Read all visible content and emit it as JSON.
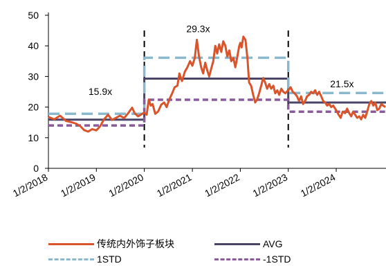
{
  "chart_data": {
    "type": "line",
    "title": "",
    "xlabel": "",
    "ylabel": "",
    "ylim": [
      0,
      50
    ],
    "yticks": [
      0,
      10,
      20,
      30,
      40,
      50
    ],
    "xlim": [
      "2018-01-02",
      "2025-01-15"
    ],
    "xtick_labels": [
      "1/2/2018",
      "1/2/2019",
      "1/2/2020",
      "1/2/2021",
      "1/2/2022",
      "1/2/2023",
      "1/2/2024"
    ],
    "xtick_dates": [
      "2018-01-02",
      "2019-01-02",
      "2020-01-02",
      "2021-01-02",
      "2022-01-02",
      "2023-01-02",
      "2024-01-02"
    ],
    "grid": false,
    "legend_position": "bottom",
    "series": [
      {
        "name": "传统内外饰子板块",
        "color": "#d9532b",
        "style": "solid",
        "points": [
          [
            "2018-01-02",
            16.8
          ],
          [
            "2018-02-15",
            16.0
          ],
          [
            "2018-04-01",
            17.2
          ],
          [
            "2018-05-15",
            15.5
          ],
          [
            "2018-07-01",
            15.0
          ],
          [
            "2018-08-01",
            14.6
          ],
          [
            "2018-09-01",
            13.8
          ],
          [
            "2018-10-01",
            12.5
          ],
          [
            "2018-11-01",
            12.0
          ],
          [
            "2018-12-01",
            12.8
          ],
          [
            "2019-01-02",
            12.4
          ],
          [
            "2019-02-01",
            13.8
          ],
          [
            "2019-03-01",
            16.0
          ],
          [
            "2019-04-01",
            17.5
          ],
          [
            "2019-05-01",
            15.8
          ],
          [
            "2019-06-01",
            16.5
          ],
          [
            "2019-07-01",
            17.2
          ],
          [
            "2019-08-01",
            16.4
          ],
          [
            "2019-09-01",
            18.0
          ],
          [
            "2019-10-01",
            19.8
          ],
          [
            "2019-10-20",
            18.0
          ],
          [
            "2019-11-15",
            17.0
          ],
          [
            "2019-12-10",
            17.6
          ],
          [
            "2020-01-02",
            18.2
          ],
          [
            "2020-01-20",
            17.5
          ],
          [
            "2020-02-05",
            22.5
          ],
          [
            "2020-02-20",
            20.5
          ],
          [
            "2020-03-05",
            21.0
          ],
          [
            "2020-03-25",
            17.8
          ],
          [
            "2020-04-15",
            18.5
          ],
          [
            "2020-05-10",
            20.8
          ],
          [
            "2020-06-01",
            21.5
          ],
          [
            "2020-06-20",
            20.0
          ],
          [
            "2020-07-10",
            22.5
          ],
          [
            "2020-08-01",
            24.5
          ],
          [
            "2020-08-20",
            26.5
          ],
          [
            "2020-09-10",
            27.0
          ],
          [
            "2020-09-25",
            31.0
          ],
          [
            "2020-10-15",
            28.5
          ],
          [
            "2020-11-05",
            31.5
          ],
          [
            "2020-11-25",
            33.0
          ],
          [
            "2020-12-15",
            35.0
          ],
          [
            "2021-01-02",
            33.5
          ],
          [
            "2021-01-20",
            36.0
          ],
          [
            "2021-02-05",
            42.0
          ],
          [
            "2021-02-20",
            37.0
          ],
          [
            "2021-03-10",
            33.0
          ],
          [
            "2021-03-25",
            31.0
          ],
          [
            "2021-04-10",
            34.5
          ],
          [
            "2021-04-25",
            32.0
          ],
          [
            "2021-05-10",
            30.0
          ],
          [
            "2021-05-25",
            32.5
          ],
          [
            "2021-06-10",
            35.0
          ],
          [
            "2021-06-25",
            40.0
          ],
          [
            "2021-07-10",
            37.5
          ],
          [
            "2021-07-25",
            40.5
          ],
          [
            "2021-08-10",
            38.0
          ],
          [
            "2021-08-25",
            41.5
          ],
          [
            "2021-09-10",
            40.0
          ],
          [
            "2021-09-25",
            36.5
          ],
          [
            "2021-10-10",
            38.5
          ],
          [
            "2021-10-25",
            35.0
          ],
          [
            "2021-11-10",
            36.0
          ],
          [
            "2021-11-25",
            33.0
          ],
          [
            "2021-12-10",
            36.5
          ],
          [
            "2021-12-25",
            40.0
          ],
          [
            "2022-01-02",
            41.0
          ],
          [
            "2022-01-12",
            39.5
          ],
          [
            "2022-01-25",
            43.0
          ],
          [
            "2022-02-10",
            42.0
          ],
          [
            "2022-02-25",
            36.0
          ],
          [
            "2022-03-10",
            28.0
          ],
          [
            "2022-03-25",
            27.0
          ],
          [
            "2022-04-10",
            24.0
          ],
          [
            "2022-04-25",
            21.5
          ],
          [
            "2022-05-10",
            22.5
          ],
          [
            "2022-05-25",
            24.5
          ],
          [
            "2022-06-10",
            27.0
          ],
          [
            "2022-06-25",
            29.5
          ],
          [
            "2022-07-10",
            28.0
          ],
          [
            "2022-07-25",
            26.0
          ],
          [
            "2022-08-10",
            27.5
          ],
          [
            "2022-08-25",
            26.0
          ],
          [
            "2022-09-10",
            27.0
          ],
          [
            "2022-09-25",
            24.5
          ],
          [
            "2022-10-10",
            25.5
          ],
          [
            "2022-10-25",
            24.0
          ],
          [
            "2022-11-10",
            26.0
          ],
          [
            "2022-11-25",
            25.0
          ],
          [
            "2022-12-10",
            24.5
          ],
          [
            "2023-01-02",
            25.5
          ],
          [
            "2023-01-20",
            26.5
          ],
          [
            "2023-02-05",
            25.0
          ],
          [
            "2023-02-20",
            24.5
          ],
          [
            "2023-03-10",
            23.5
          ],
          [
            "2023-03-25",
            22.0
          ],
          [
            "2023-04-10",
            23.5
          ],
          [
            "2023-04-25",
            21.0
          ],
          [
            "2023-05-10",
            22.0
          ],
          [
            "2023-05-25",
            23.5
          ],
          [
            "2023-06-10",
            24.0
          ],
          [
            "2023-06-25",
            25.0
          ],
          [
            "2023-07-10",
            24.5
          ],
          [
            "2023-07-25",
            25.5
          ],
          [
            "2023-08-10",
            24.0
          ],
          [
            "2023-08-25",
            25.0
          ],
          [
            "2023-09-10",
            23.5
          ],
          [
            "2023-09-25",
            22.0
          ],
          [
            "2023-10-10",
            21.5
          ],
          [
            "2023-10-25",
            20.5
          ],
          [
            "2023-11-10",
            21.0
          ],
          [
            "2023-11-25",
            20.0
          ],
          [
            "2023-12-10",
            20.5
          ],
          [
            "2023-12-25",
            19.5
          ],
          [
            "2024-01-02",
            19.0
          ],
          [
            "2024-01-20",
            17.5
          ],
          [
            "2024-02-05",
            16.5
          ],
          [
            "2024-02-20",
            18.5
          ],
          [
            "2024-03-10",
            18.0
          ],
          [
            "2024-03-25",
            19.5
          ],
          [
            "2024-04-10",
            18.0
          ],
          [
            "2024-04-25",
            17.0
          ],
          [
            "2024-05-10",
            18.5
          ],
          [
            "2024-05-25",
            17.5
          ],
          [
            "2024-06-10",
            16.5
          ],
          [
            "2024-06-25",
            17.0
          ],
          [
            "2024-07-10",
            16.0
          ],
          [
            "2024-07-25",
            17.5
          ],
          [
            "2024-08-10",
            16.5
          ],
          [
            "2024-08-25",
            18.5
          ],
          [
            "2024-09-10",
            21.0
          ],
          [
            "2024-09-25",
            22.0
          ],
          [
            "2024-10-10",
            20.5
          ],
          [
            "2024-10-25",
            21.5
          ],
          [
            "2024-11-10",
            19.0
          ],
          [
            "2024-11-25",
            19.5
          ],
          [
            "2024-12-10",
            21.0
          ],
          [
            "2024-12-25",
            20.5
          ],
          [
            "2025-01-10",
            20.0
          ]
        ]
      },
      {
        "name": "AVG",
        "color": "#4a4568",
        "style": "solid",
        "segments": [
          {
            "start": "2018-01-02",
            "end": "2020-01-02",
            "value": 15.9
          },
          {
            "start": "2020-01-02",
            "end": "2023-01-02",
            "value": 29.3
          },
          {
            "start": "2023-01-02",
            "end": "2025-01-15",
            "value": 21.5
          }
        ]
      },
      {
        "name": "1STD",
        "color": "#8ab8cd",
        "style": "long-dash",
        "segments": [
          {
            "start": "2018-01-02",
            "end": "2020-01-02",
            "value": 17.8
          },
          {
            "start": "2020-01-02",
            "end": "2023-01-02",
            "value": 36.1
          },
          {
            "start": "2023-01-02",
            "end": "2025-01-15",
            "value": 24.6
          }
        ]
      },
      {
        "name": "-1STD",
        "color": "#8a5a9c",
        "style": "short-dash",
        "segments": [
          {
            "start": "2018-01-02",
            "end": "2020-01-02",
            "value": 14.0
          },
          {
            "start": "2020-01-02",
            "end": "2023-01-02",
            "value": 22.4
          },
          {
            "start": "2023-01-02",
            "end": "2025-01-15",
            "value": 18.5
          }
        ]
      }
    ],
    "period_dividers": [
      "2020-01-02",
      "2023-01-02"
    ],
    "annotations": [
      {
        "text": "15.9x",
        "x": "2019-02-01",
        "y": 24.0
      },
      {
        "text": "29.3x",
        "x": "2021-02-15",
        "y": 44.5
      },
      {
        "text": "21.5x",
        "x": "2024-02-15",
        "y": 26.5
      }
    ]
  }
}
